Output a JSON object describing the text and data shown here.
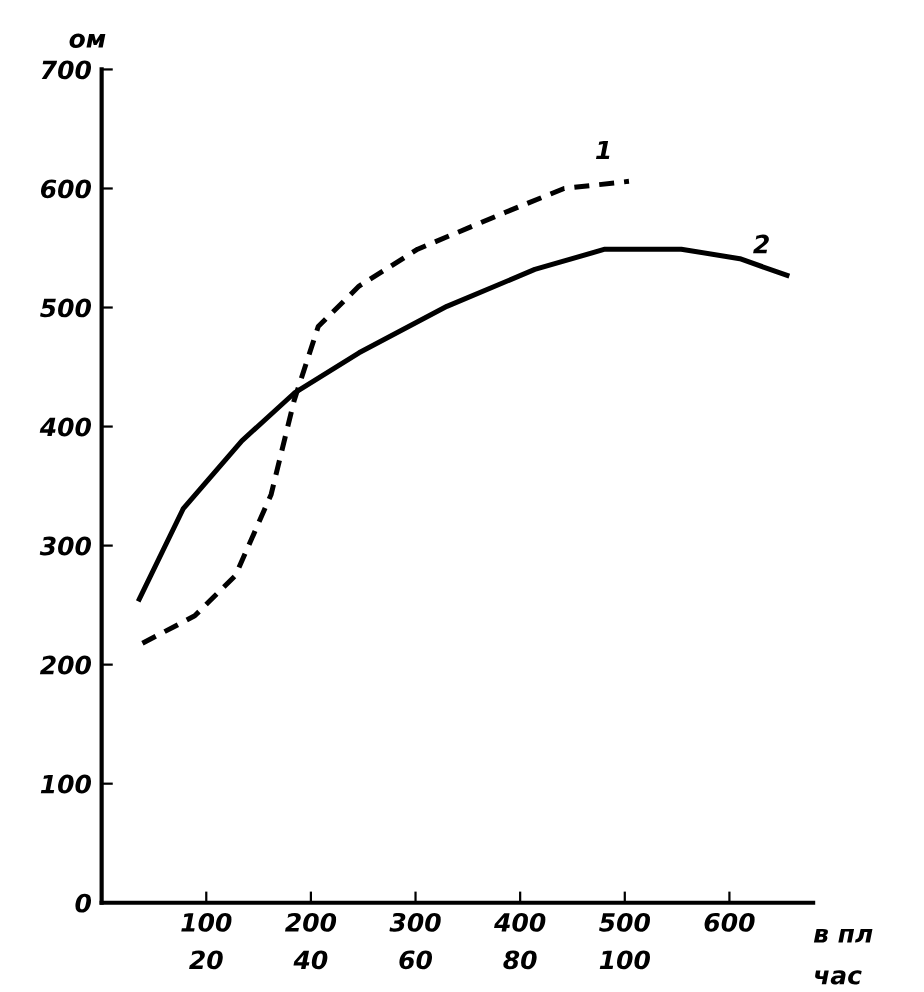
{
  "chart_data": {
    "type": "line",
    "ylabel": "ом",
    "xlabel": "в пл",
    "x2label": "час",
    "xlim": [
      0,
      680
    ],
    "xticks": [
      100,
      200,
      300,
      400,
      500,
      600
    ],
    "x2lim": [
      0,
      136
    ],
    "x2ticks": [
      20,
      40,
      60,
      80,
      100
    ],
    "ylim": [
      0,
      700
    ],
    "yticks": [
      0,
      100,
      200,
      300,
      400,
      500,
      600,
      700
    ],
    "grid": false,
    "marker": "none",
    "series": [
      {
        "name": "1",
        "color": "#000000",
        "line_style": "dashed",
        "x": [
          39,
          89,
          128,
          162,
          184,
          207,
          246,
          302,
          386,
          442,
          504
        ],
        "values": [
          218,
          241,
          275,
          343,
          422,
          484,
          518,
          549,
          580,
          600,
          606
        ]
      },
      {
        "name": "2",
        "color": "#000000",
        "line_style": "solid",
        "x": [
          36,
          78,
          134,
          184,
          246,
          330,
          414,
          481,
          554,
          610,
          655
        ],
        "values": [
          255,
          331,
          388,
          428,
          462,
          501,
          532,
          549,
          549,
          541,
          527
        ]
      }
    ]
  }
}
